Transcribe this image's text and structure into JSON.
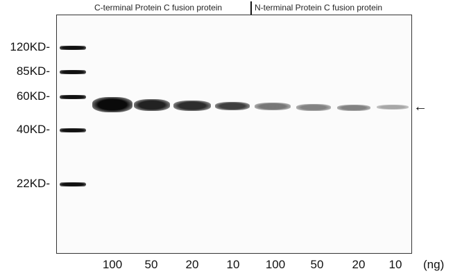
{
  "header": {
    "left_label": "C-terminal Protein C fusion protein",
    "right_label": "N-terminal Protein C fusion protein"
  },
  "markers": [
    {
      "label": "120KD-"
    },
    {
      "label": "85KD-"
    },
    {
      "label": "60KD-"
    },
    {
      "label": "40KD-"
    },
    {
      "label": "22KD-"
    }
  ],
  "lanes": [
    {
      "label": "100",
      "intensity": 1.0
    },
    {
      "label": "50",
      "intensity": 0.9
    },
    {
      "label": "20",
      "intensity": 0.85
    },
    {
      "label": "10",
      "intensity": 0.78
    },
    {
      "label": "100",
      "intensity": 0.55
    },
    {
      "label": "50",
      "intensity": 0.5
    },
    {
      "label": "20",
      "intensity": 0.5
    },
    {
      "label": "10",
      "intensity": 0.35
    }
  ],
  "unit_label": "(ng)",
  "arrow": "←"
}
